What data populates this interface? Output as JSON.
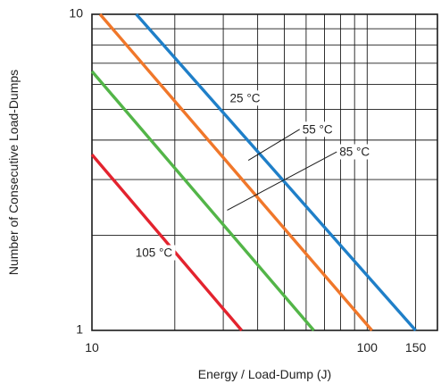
{
  "chart_data": {
    "type": "line",
    "title": "",
    "xlabel": "Energy / Load-Dump (J)",
    "ylabel": "Number of Consecutive Load-Dumps",
    "x_scale": "log",
    "y_scale": "log",
    "xlim": [
      10,
      180
    ],
    "ylim": [
      1,
      10
    ],
    "x_tick_labels": [
      {
        "value": 10,
        "label": "10"
      },
      {
        "value": 100,
        "label": "100"
      },
      {
        "value": 150,
        "label": "150"
      }
    ],
    "y_tick_labels": [
      {
        "value": 1,
        "label": "1"
      },
      {
        "value": 10,
        "label": "10"
      }
    ],
    "grid": true,
    "grid_x_values": [
      10,
      20,
      30,
      40,
      50,
      60,
      70,
      80,
      90,
      100,
      150
    ],
    "grid_y_values": [
      1,
      2,
      3,
      4,
      5,
      6,
      7,
      8,
      9,
      10
    ],
    "legend": "none",
    "series": [
      {
        "name": "25 °C",
        "color": "#1f7fc8",
        "x": [
          14.5,
          150
        ],
        "y": [
          10,
          1
        ]
      },
      {
        "name": "55 °C",
        "color": "#f0772a",
        "x": [
          10.7,
          104
        ],
        "y": [
          10,
          1
        ]
      },
      {
        "name": "85 °C",
        "color": "#53b548",
        "x": [
          10,
          64
        ],
        "y": [
          6.6,
          1
        ]
      },
      {
        "name": "105 °C",
        "color": "#e3232e",
        "x": [
          10,
          35
        ],
        "y": [
          3.6,
          1
        ]
      }
    ],
    "annotations": [
      {
        "text": "25 °C",
        "series": "25 °C",
        "leader": false,
        "text_at": [
          36,
          5.4
        ]
      },
      {
        "text": "55 °C",
        "series": "55 °C",
        "leader": true,
        "text_at": [
          66,
          4.3
        ],
        "point_at": [
          37,
          3.45
        ]
      },
      {
        "text": "85 °C",
        "series": "85 °C",
        "leader": true,
        "text_at": [
          90,
          3.65
        ],
        "point_at": [
          31,
          2.4
        ]
      },
      {
        "text": "105 °C",
        "series": "105 °C",
        "leader": false,
        "text_at": [
          16.8,
          1.75
        ]
      }
    ]
  }
}
